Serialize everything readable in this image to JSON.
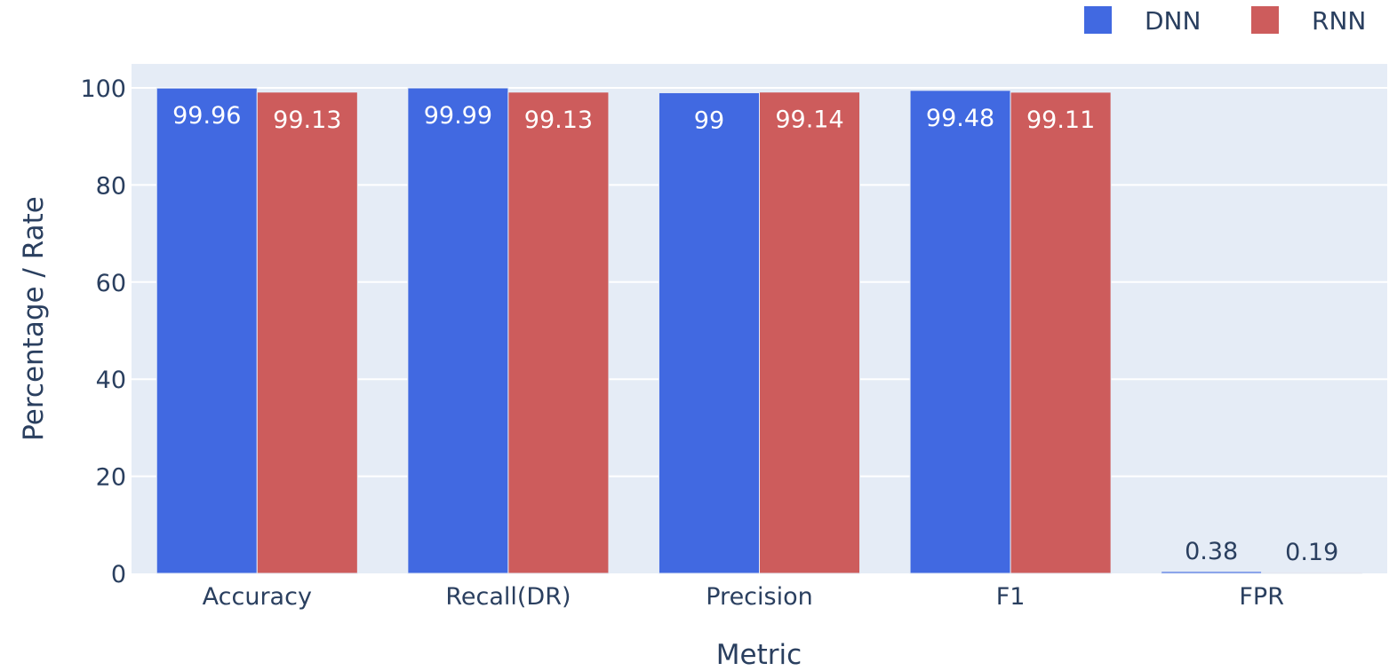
{
  "chart_data": {
    "type": "bar",
    "title": "",
    "xlabel": "Metric",
    "ylabel": "Percentage / Rate",
    "categories": [
      "Accuracy",
      "Recall(DR)",
      "Precision",
      "F1",
      "FPR"
    ],
    "series": [
      {
        "name": "DNN",
        "color": "#4169e1",
        "values": [
          99.96,
          99.99,
          99,
          99.48,
          0.38
        ],
        "labels": [
          "99.96",
          "99.99",
          "99",
          "99.48",
          "0.38"
        ]
      },
      {
        "name": "RNN",
        "color": "#cd5c5c",
        "values": [
          99.13,
          99.13,
          99.14,
          99.11,
          0.19
        ],
        "labels": [
          "99.13",
          "99.13",
          "99.14",
          "99.11",
          "0.19"
        ]
      }
    ],
    "ylim": [
      0,
      100
    ],
    "yticks": [
      "0",
      "20",
      "40",
      "60",
      "80",
      "100"
    ],
    "grid": true,
    "legend": "top-right",
    "plot_bgcolor": "#e5ecf6"
  }
}
